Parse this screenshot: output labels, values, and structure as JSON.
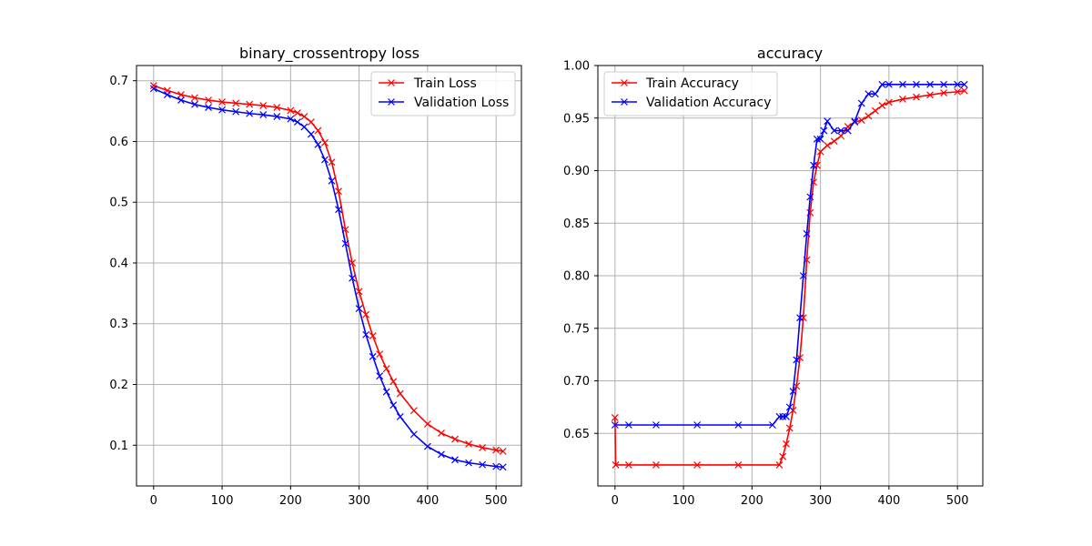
{
  "chart_data": [
    {
      "type": "line",
      "title": "binary_crossentropy loss",
      "xlabel": "",
      "ylabel": "",
      "xlim": [
        -25,
        537
      ],
      "ylim": [
        0.033,
        0.725
      ],
      "xticks": [
        0,
        100,
        200,
        300,
        400,
        500
      ],
      "yticks": [
        0.1,
        0.2,
        0.3,
        0.4,
        0.5,
        0.6,
        0.7
      ],
      "grid": true,
      "legend_position": "upper right",
      "marker": "x",
      "series": [
        {
          "name": "Train Loss",
          "color": "#ff0000",
          "x": [
            0,
            20,
            40,
            60,
            80,
            100,
            120,
            140,
            160,
            180,
            200,
            210,
            220,
            230,
            240,
            250,
            260,
            270,
            280,
            290,
            300,
            310,
            320,
            330,
            340,
            350,
            360,
            380,
            400,
            420,
            440,
            460,
            480,
            500,
            510
          ],
          "y": [
            0.692,
            0.684,
            0.677,
            0.672,
            0.668,
            0.665,
            0.663,
            0.661,
            0.659,
            0.656,
            0.651,
            0.647,
            0.641,
            0.632,
            0.618,
            0.598,
            0.566,
            0.518,
            0.455,
            0.4,
            0.353,
            0.315,
            0.28,
            0.25,
            0.226,
            0.205,
            0.185,
            0.157,
            0.135,
            0.12,
            0.11,
            0.102,
            0.096,
            0.092,
            0.09
          ]
        },
        {
          "name": "Validation Loss",
          "color": "#0000ff",
          "x": [
            0,
            20,
            40,
            60,
            80,
            100,
            120,
            140,
            160,
            180,
            200,
            210,
            220,
            230,
            240,
            250,
            260,
            270,
            280,
            290,
            300,
            310,
            320,
            330,
            340,
            350,
            360,
            380,
            400,
            420,
            440,
            460,
            480,
            500,
            510
          ],
          "y": [
            0.687,
            0.677,
            0.668,
            0.661,
            0.656,
            0.652,
            0.649,
            0.646,
            0.644,
            0.641,
            0.637,
            0.632,
            0.624,
            0.612,
            0.595,
            0.57,
            0.535,
            0.488,
            0.432,
            0.375,
            0.325,
            0.282,
            0.246,
            0.214,
            0.188,
            0.166,
            0.147,
            0.118,
            0.098,
            0.085,
            0.076,
            0.071,
            0.068,
            0.065,
            0.064
          ]
        }
      ]
    },
    {
      "type": "line",
      "title": "accuracy",
      "xlabel": "",
      "ylabel": "",
      "xlim": [
        -25,
        537
      ],
      "ylim": [
        0.6,
        1.0
      ],
      "xticks": [
        0,
        100,
        200,
        300,
        400,
        500
      ],
      "yticks": [
        0.65,
        0.7,
        0.75,
        0.8,
        0.85,
        0.9,
        0.95,
        1.0
      ],
      "grid": true,
      "legend_position": "upper left",
      "marker": "x",
      "series": [
        {
          "name": "Train Accuracy",
          "color": "#ff0000",
          "x": [
            0,
            1,
            20,
            60,
            120,
            180,
            240,
            245,
            250,
            255,
            260,
            265,
            270,
            275,
            280,
            285,
            290,
            295,
            300,
            310,
            320,
            330,
            340,
            350,
            360,
            370,
            380,
            390,
            400,
            420,
            440,
            460,
            480,
            500,
            510
          ],
          "y": [
            0.665,
            0.62,
            0.62,
            0.62,
            0.62,
            0.62,
            0.62,
            0.628,
            0.64,
            0.655,
            0.672,
            0.695,
            0.722,
            0.76,
            0.815,
            0.86,
            0.889,
            0.905,
            0.918,
            0.924,
            0.928,
            0.933,
            0.942,
            0.946,
            0.948,
            0.952,
            0.957,
            0.962,
            0.965,
            0.968,
            0.97,
            0.972,
            0.974,
            0.975,
            0.976
          ]
        },
        {
          "name": "Validation Accuracy",
          "color": "#0000ff",
          "x": [
            0,
            20,
            60,
            120,
            180,
            230,
            240,
            245,
            250,
            255,
            260,
            265,
            270,
            275,
            280,
            285,
            290,
            295,
            300,
            305,
            310,
            320,
            330,
            340,
            350,
            360,
            370,
            380,
            390,
            400,
            420,
            440,
            460,
            480,
            500,
            510
          ],
          "y": [
            0.658,
            0.658,
            0.658,
            0.658,
            0.658,
            0.658,
            0.666,
            0.666,
            0.666,
            0.675,
            0.69,
            0.72,
            0.76,
            0.8,
            0.84,
            0.875,
            0.905,
            0.93,
            0.93,
            0.938,
            0.947,
            0.938,
            0.938,
            0.938,
            0.947,
            0.964,
            0.973,
            0.973,
            0.982,
            0.982,
            0.982,
            0.982,
            0.982,
            0.982,
            0.982,
            0.982
          ]
        }
      ]
    }
  ]
}
